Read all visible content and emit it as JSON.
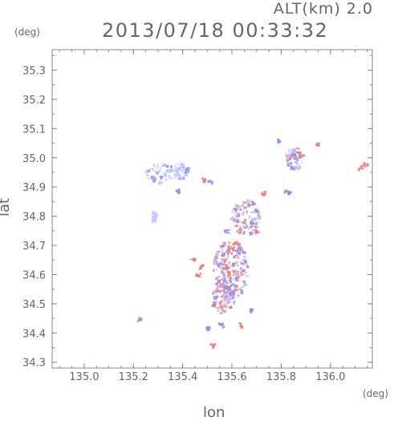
{
  "header": {
    "altitude_label": "ALT(km) 2.0",
    "timestamp": "2013/07/18 00:33:32"
  },
  "chart_data": {
    "type": "heatmap",
    "title": "2013/07/18 00:33:32",
    "subtitle": "ALT(km) 2.0",
    "xlabel": "lon",
    "ylabel": "lat",
    "x_unit": "(deg)",
    "y_unit": "(deg)",
    "xlim": [
      134.87,
      136.17
    ],
    "ylim": [
      34.28,
      35.37
    ],
    "xticks": [
      135.0,
      135.2,
      135.4,
      135.6,
      135.8,
      136.0
    ],
    "xtick_labels": [
      "135.0",
      "135.2",
      "135.4",
      "135.6",
      "135.8",
      "136.0"
    ],
    "yticks": [
      34.3,
      34.4,
      34.5,
      34.6,
      34.7,
      34.8,
      34.9,
      35.0,
      35.1,
      35.2,
      35.3
    ],
    "ytick_labels": [
      "34.3",
      "34.4",
      "34.5",
      "34.6",
      "34.7",
      "34.8",
      "34.9",
      "35.0",
      "35.1",
      "35.2",
      "35.3"
    ],
    "colors": {
      "negative": "#8c8cf0",
      "positive": "#f07878",
      "weak_negative": "#c8c8f8",
      "axis": "#888888"
    },
    "regions": [
      {
        "lon": 135.31,
        "lat": 34.95,
        "rx": 0.07,
        "ry": 0.035,
        "sign": "neg",
        "strength": 0.45
      },
      {
        "lon": 135.39,
        "lat": 34.96,
        "rx": 0.03,
        "ry": 0.03,
        "sign": "neg",
        "strength": 0.45
      },
      {
        "lon": 135.28,
        "lat": 34.8,
        "rx": 0.01,
        "ry": 0.02,
        "sign": "neg",
        "strength": 0.35
      },
      {
        "lon": 135.59,
        "lat": 34.62,
        "rx": 0.07,
        "ry": 0.1,
        "sign": "mix",
        "strength": 0.6
      },
      {
        "lon": 135.56,
        "lat": 34.52,
        "rx": 0.05,
        "ry": 0.05,
        "sign": "mix",
        "strength": 0.55
      },
      {
        "lon": 135.65,
        "lat": 34.8,
        "rx": 0.06,
        "ry": 0.06,
        "sign": "mix",
        "strength": 0.45
      },
      {
        "lon": 135.85,
        "lat": 35.0,
        "rx": 0.04,
        "ry": 0.04,
        "sign": "mix",
        "strength": 0.45
      }
    ],
    "specks": [
      {
        "lon": 136.12,
        "lat": 34.97,
        "sign": "pos"
      },
      {
        "lon": 136.14,
        "lat": 34.98,
        "sign": "pos"
      },
      {
        "lon": 135.44,
        "lat": 34.66,
        "sign": "pos"
      },
      {
        "lon": 135.47,
        "lat": 34.63,
        "sign": "pos"
      },
      {
        "lon": 135.46,
        "lat": 34.6,
        "sign": "pos"
      },
      {
        "lon": 135.63,
        "lat": 34.43,
        "sign": "pos"
      },
      {
        "lon": 135.68,
        "lat": 34.48,
        "sign": "neg"
      },
      {
        "lon": 135.5,
        "lat": 34.42,
        "sign": "neg"
      },
      {
        "lon": 135.52,
        "lat": 34.36,
        "sign": "pos"
      },
      {
        "lon": 135.55,
        "lat": 34.43,
        "sign": "neg"
      },
      {
        "lon": 135.22,
        "lat": 34.45,
        "sign": "neg"
      },
      {
        "lon": 135.82,
        "lat": 34.89,
        "sign": "pos"
      },
      {
        "lon": 135.83,
        "lat": 34.88,
        "sign": "neg"
      },
      {
        "lon": 135.79,
        "lat": 35.06,
        "sign": "neg"
      },
      {
        "lon": 135.94,
        "lat": 35.05,
        "sign": "pos"
      },
      {
        "lon": 135.72,
        "lat": 34.88,
        "sign": "pos"
      },
      {
        "lon": 135.48,
        "lat": 34.93,
        "sign": "pos"
      },
      {
        "lon": 135.51,
        "lat": 34.92,
        "sign": "neg"
      },
      {
        "lon": 135.7,
        "lat": 34.75,
        "sign": "pos"
      },
      {
        "lon": 135.57,
        "lat": 34.75,
        "sign": "neg"
      },
      {
        "lon": 135.62,
        "lat": 34.71,
        "sign": "pos"
      },
      {
        "lon": 135.38,
        "lat": 34.89,
        "sign": "neg"
      }
    ]
  }
}
